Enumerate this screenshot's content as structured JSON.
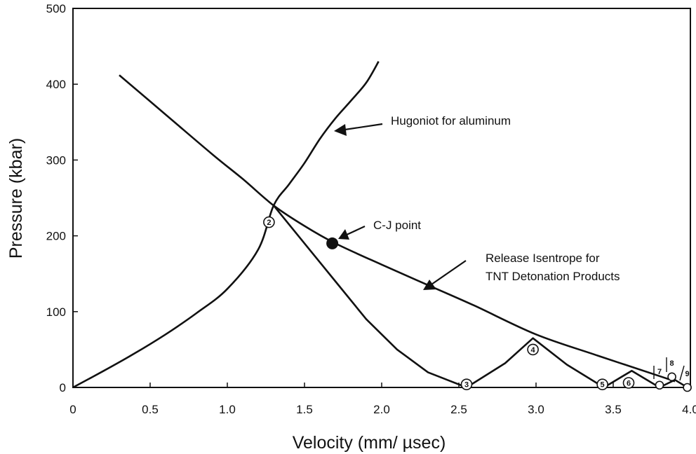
{
  "chart_data": {
    "type": "line",
    "xlabel": "Velocity (mm/ µsec)",
    "ylabel": "Pressure (kbar)",
    "xlim": [
      0,
      4.0
    ],
    "ylim": [
      0,
      500
    ],
    "xticks": [
      "0",
      "0.5",
      "1.0",
      "1.5",
      "2.0",
      "2.5",
      "3.0",
      "3.5",
      "4.0"
    ],
    "yticks": [
      "0",
      "100",
      "200",
      "300",
      "400",
      "500"
    ],
    "grid": false,
    "series": [
      {
        "x": [
          0,
          0.2,
          0.4,
          0.6,
          0.8,
          1.0,
          1.2,
          1.3,
          1.4,
          1.5,
          1.6,
          1.7,
          1.8,
          1.9,
          1.98
        ],
        "y": [
          0,
          22,
          45,
          70,
          98,
          130,
          182,
          240,
          268,
          296,
          328,
          355,
          378,
          402,
          430
        ]
      },
      {
        "x": [
          0.3,
          0.6,
          0.9,
          1.1,
          1.3,
          1.5,
          1.7,
          2.0,
          2.3,
          2.6,
          3.0,
          3.4,
          3.8,
          3.9
        ],
        "y": [
          412,
          360,
          308,
          275,
          240,
          213,
          190,
          162,
          135,
          108,
          70,
          42,
          15,
          8
        ]
      },
      {
        "x": [
          1.3,
          1.5,
          1.7,
          1.9,
          2.1,
          2.3,
          2.55,
          2.8,
          2.98,
          3.2,
          3.44,
          3.62,
          3.8,
          3.9,
          3.98
        ],
        "y": [
          240,
          190,
          140,
          90,
          50,
          20,
          0,
          32,
          65,
          30,
          0,
          22,
          0,
          10,
          0
        ]
      }
    ],
    "annotations": [
      {
        "text": "Hugoniot for aluminum"
      },
      {
        "text": "C-J point",
        "x": 1.68,
        "y": 190
      },
      {
        "text": "Release Isentrope for",
        "line2": "TNT Detonation Products"
      }
    ],
    "markers": [
      {
        "label": "2",
        "x": 1.27,
        "y": 218
      },
      {
        "label": "3",
        "x": 2.55,
        "y": 4
      },
      {
        "label": "4",
        "x": 2.98,
        "y": 50
      },
      {
        "label": "5",
        "x": 3.43,
        "y": 4
      },
      {
        "label": "6",
        "x": 3.6,
        "y": 6
      },
      {
        "label": "7",
        "x": 3.8,
        "y": 3
      },
      {
        "label": "8",
        "x": 3.88,
        "y": 14
      },
      {
        "label": "9",
        "x": 3.98,
        "y": 0
      }
    ]
  }
}
